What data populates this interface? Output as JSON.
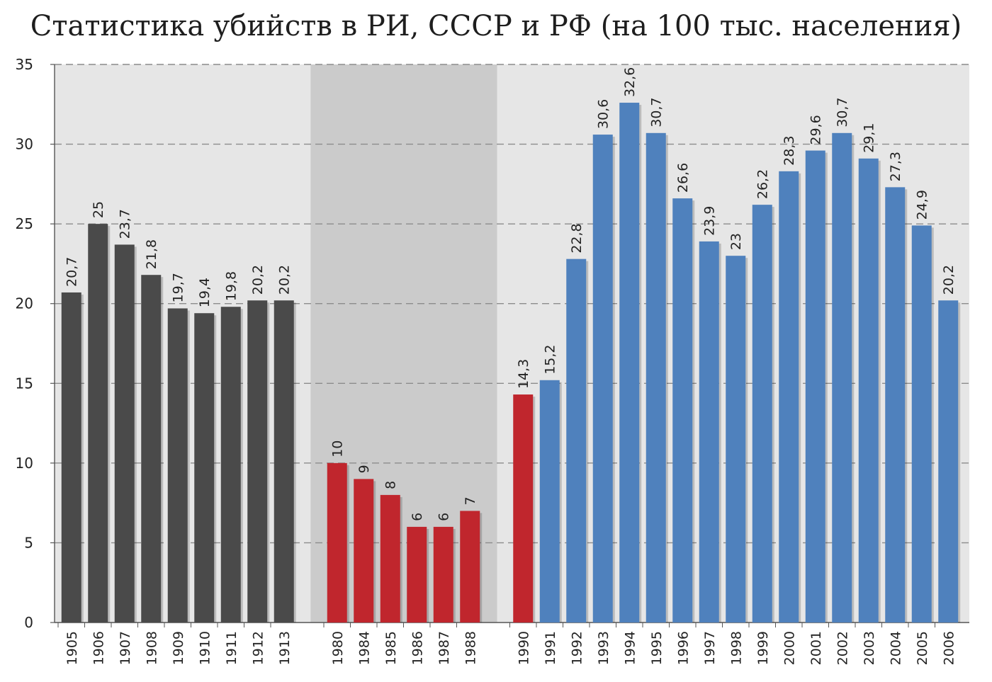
{
  "chart_data": {
    "type": "bar",
    "title": "Статистика убийств в РИ, СССР и РФ (на 100 тыс. населения)",
    "xlabel": "",
    "ylabel": "",
    "ylim": [
      0,
      35
    ],
    "yticks": [
      0,
      5,
      10,
      15,
      20,
      25,
      30,
      35
    ],
    "grid": true,
    "legend": "none",
    "groups": [
      {
        "color": "#4a4a4a",
        "shade": "#e6e6e6",
        "categories": [
          "1905",
          "1906",
          "1907",
          "1908",
          "1909",
          "1910",
          "1911",
          "1912",
          "1913"
        ],
        "values": [
          20.7,
          25,
          23.7,
          21.8,
          19.7,
          19.4,
          19.8,
          20.2,
          20.2
        ],
        "labels": [
          "20,7",
          "25",
          "23,7",
          "21,8",
          "19,7",
          "19,4",
          "19,8",
          "20,2",
          "20,2"
        ]
      },
      {
        "color": "#c0262d",
        "shade": "#cbcbcb",
        "categories": [
          "1980",
          "1984",
          "1985",
          "1986",
          "1987",
          "1988"
        ],
        "values": [
          10,
          9,
          8,
          6,
          6,
          7
        ],
        "labels": [
          "10",
          "9",
          "8",
          "6",
          "6",
          "7"
        ]
      },
      {
        "color": "#c0262d",
        "shade": "#e6e6e6",
        "categories": [
          "1990"
        ],
        "values": [
          14.3
        ],
        "labels": [
          "14,3"
        ]
      },
      {
        "color": "#4f81bd",
        "shade": "#e6e6e6",
        "categories": [
          "1991",
          "1992",
          "1993",
          "1994",
          "1995",
          "1996",
          "1997",
          "1998",
          "1999",
          "2000",
          "2001",
          "2002",
          "2003",
          "2004",
          "2005",
          "2006"
        ],
        "values": [
          15.2,
          22.8,
          30.6,
          32.6,
          30.7,
          26.6,
          23.9,
          23,
          26.2,
          28.3,
          29.6,
          30.7,
          29.1,
          27.3,
          24.9,
          20.2
        ],
        "labels": [
          "15,2",
          "22,8",
          "30,6",
          "32,6",
          "30,7",
          "26,6",
          "23,9",
          "23",
          "26,2",
          "28,3",
          "29,6",
          "30,7",
          "29,1",
          "27,3",
          "24,9",
          "20,2"
        ]
      }
    ]
  }
}
